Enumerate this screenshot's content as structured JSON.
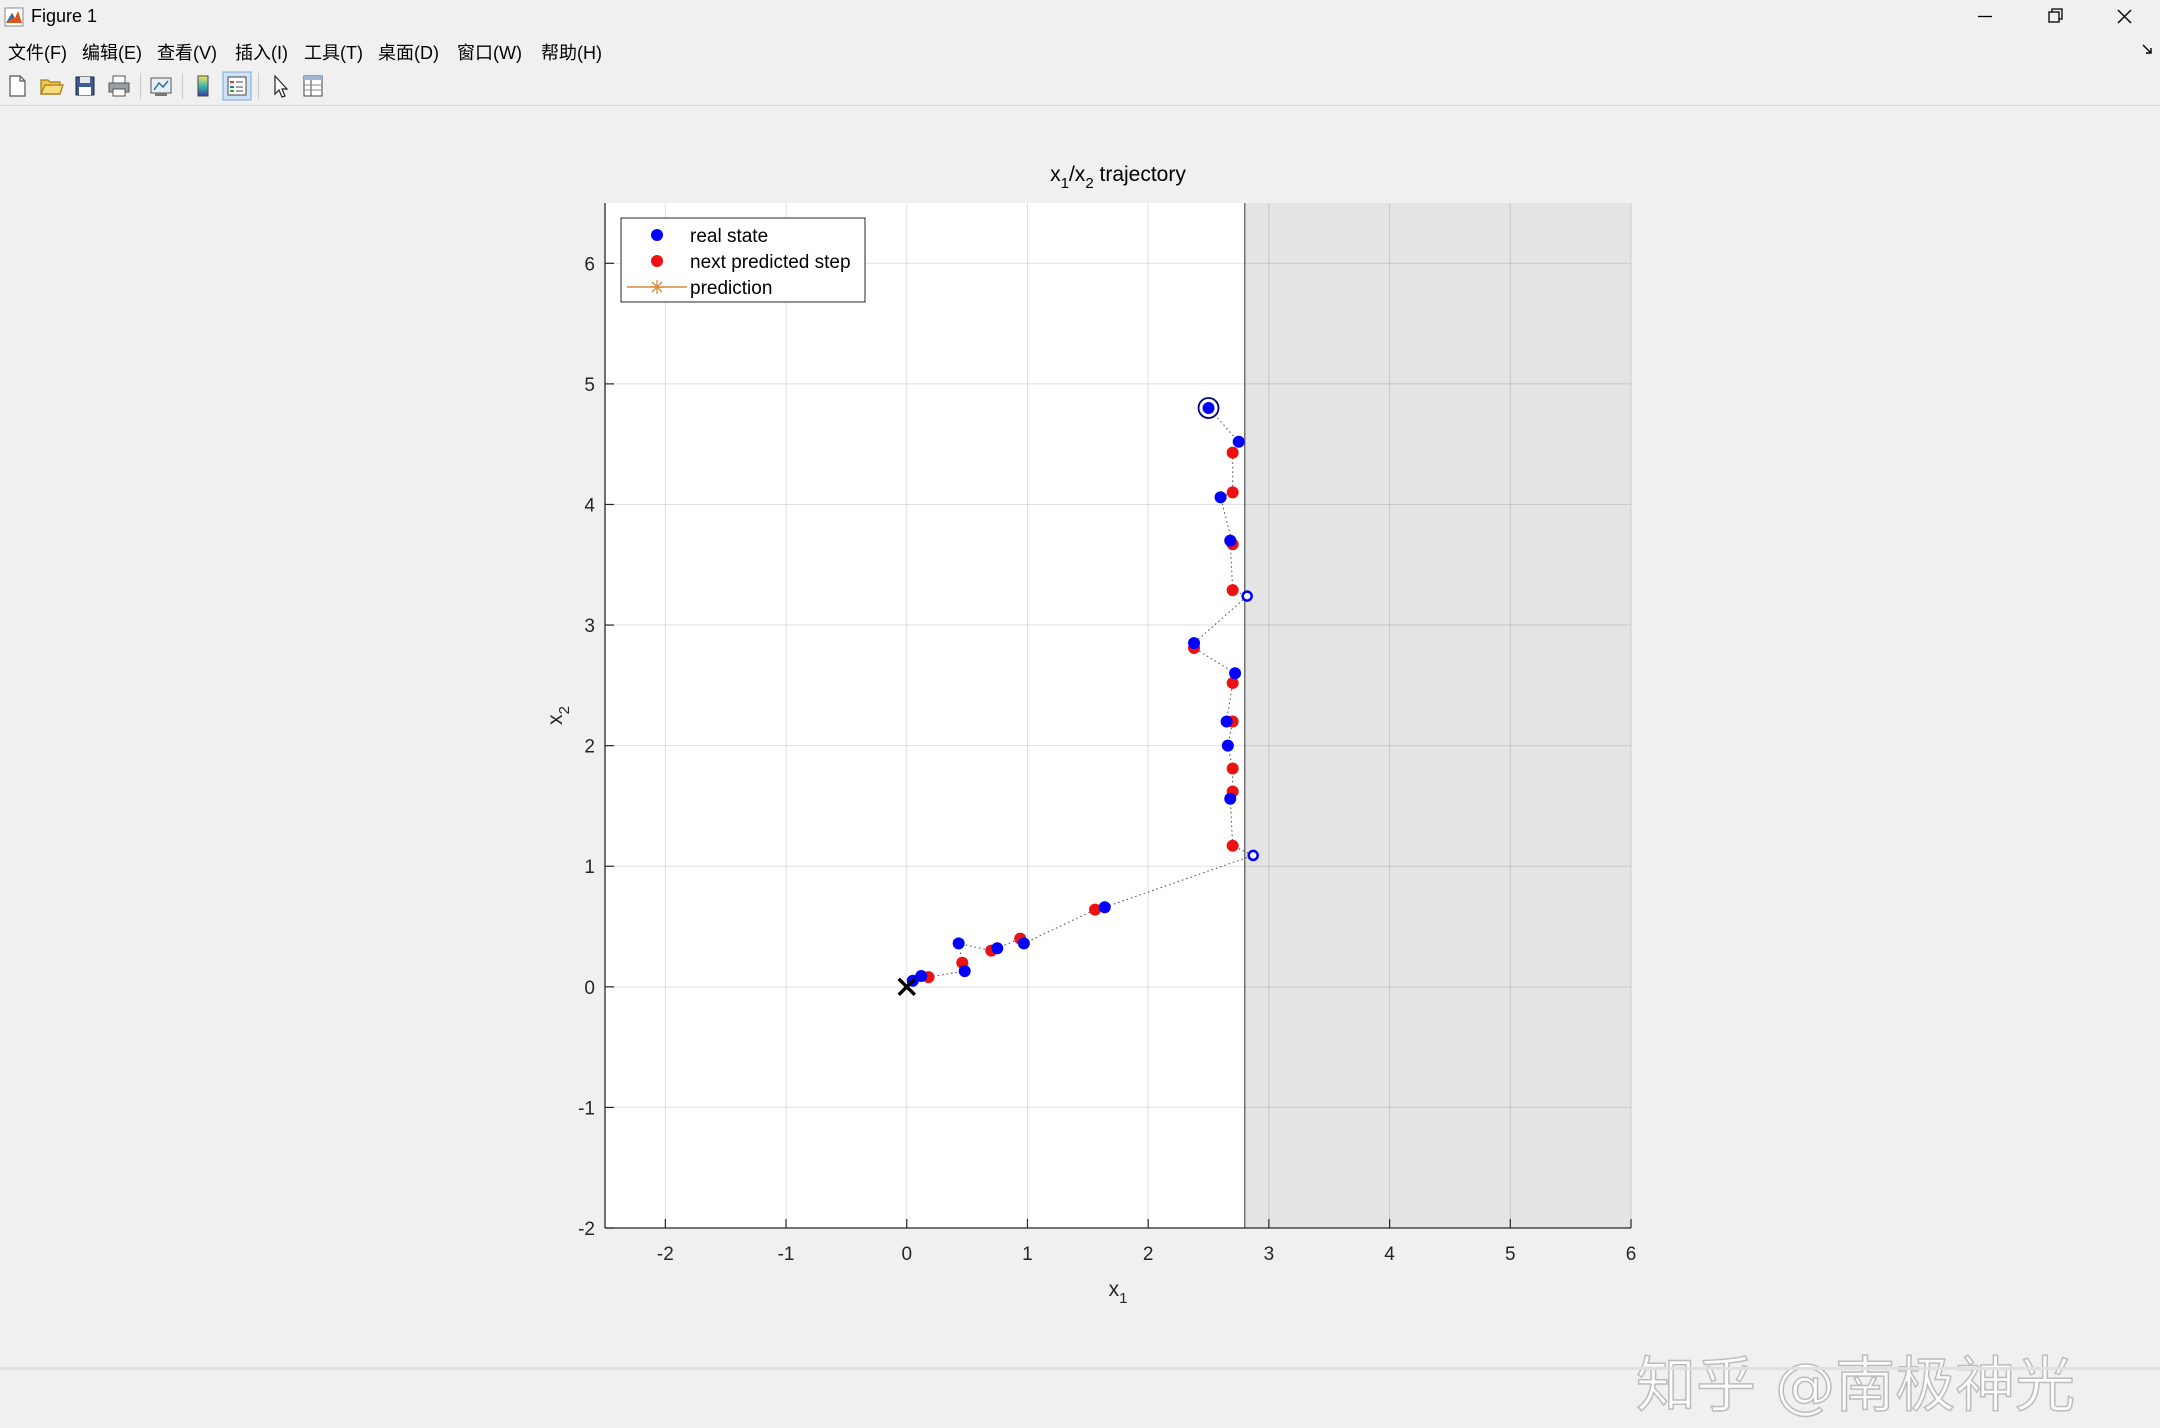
{
  "window": {
    "title": "Figure 1"
  },
  "menu": [
    "文件(F)",
    "编辑(E)",
    "查看(V)",
    "插入(I)",
    "工具(T)",
    "桌面(D)",
    "窗口(W)",
    "帮助(H)"
  ],
  "toolbar": {
    "icons": [
      "new-figure-icon",
      "open-file-icon",
      "save-icon",
      "print-icon",
      "link-plot-icon",
      "insert-colorbar-icon",
      "insert-legend-icon",
      "pointer-icon",
      "property-inspector-icon"
    ]
  },
  "watermark": {
    "text": "知乎 @南极神光"
  },
  "colors": {
    "real_state": "#0000ff",
    "predicted": "#ee1111",
    "prediction_line": "#d9893b",
    "shade": "#e4e4e4"
  },
  "chart_data": {
    "type": "scatter",
    "title_main": "x",
    "title_sub1": "1",
    "title_mid": "/x",
    "title_sub2": "2",
    "title_tail": " trajectory",
    "xlabel_main": "x",
    "xlabel_sub": "1",
    "ylabel_main": "x",
    "ylabel_sub": "2",
    "xlim": [
      -2.5,
      6
    ],
    "ylim": [
      -2,
      6.5
    ],
    "xticks": [
      -2,
      -1,
      0,
      1,
      2,
      3,
      4,
      5,
      6
    ],
    "yticks": [
      -2,
      -1,
      0,
      1,
      2,
      3,
      4,
      5,
      6
    ],
    "grid": true,
    "legend_position": "top-left",
    "legend": [
      "real state",
      "next predicted step",
      "prediction"
    ],
    "constraint_x": 2.8,
    "start_point": [
      2.5,
      4.8
    ],
    "target_point": [
      0,
      0
    ],
    "series": [
      {
        "name": "real state",
        "x": [
          2.5,
          2.75,
          2.6,
          2.68,
          2.38,
          2.72,
          2.65,
          2.66,
          2.68,
          1.64,
          0.97,
          0.75,
          0.43,
          0.48,
          0.12,
          0.05
        ],
        "y": [
          4.8,
          4.52,
          4.06,
          3.7,
          2.85,
          2.6,
          2.2,
          2.0,
          1.56,
          0.66,
          0.36,
          0.32,
          0.36,
          0.13,
          0.09,
          0.05
        ]
      },
      {
        "name": "next predicted step",
        "x": [
          2.7,
          2.7,
          2.7,
          2.7,
          2.38,
          2.7,
          2.7,
          2.7,
          2.7,
          2.7,
          1.56,
          0.94,
          0.7,
          0.46,
          0.18
        ],
        "y": [
          4.43,
          4.1,
          3.67,
          3.29,
          2.81,
          2.52,
          2.2,
          1.81,
          1.62,
          1.17,
          0.64,
          0.4,
          0.3,
          0.2,
          0.08
        ]
      },
      {
        "name": "prediction",
        "x": [],
        "y": []
      },
      {
        "name": "",
        "x": [
          2.82,
          2.87
        ],
        "y": [
          3.24,
          1.09
        ]
      }
    ],
    "path": {
      "x": [
        2.5,
        2.75,
        2.7,
        2.7,
        2.6,
        2.7,
        2.68,
        2.7,
        2.82,
        2.38,
        2.38,
        2.72,
        2.7,
        2.65,
        2.7,
        2.66,
        2.7,
        2.7,
        2.68,
        2.7,
        2.87,
        1.64,
        1.56,
        0.97,
        0.94,
        0.75,
        0.7,
        0.43,
        0.46,
        0.48,
        0.18,
        0.12,
        0.05,
        0
      ],
      "y": [
        4.8,
        4.52,
        4.43,
        4.1,
        4.06,
        3.67,
        3.7,
        3.29,
        3.24,
        2.85,
        2.81,
        2.6,
        2.52,
        2.2,
        2.2,
        2.0,
        1.81,
        1.62,
        1.56,
        1.17,
        1.09,
        0.66,
        0.64,
        0.36,
        0.4,
        0.32,
        0.3,
        0.36,
        0.2,
        0.13,
        0.08,
        0.09,
        0.05,
        0
      ]
    }
  }
}
